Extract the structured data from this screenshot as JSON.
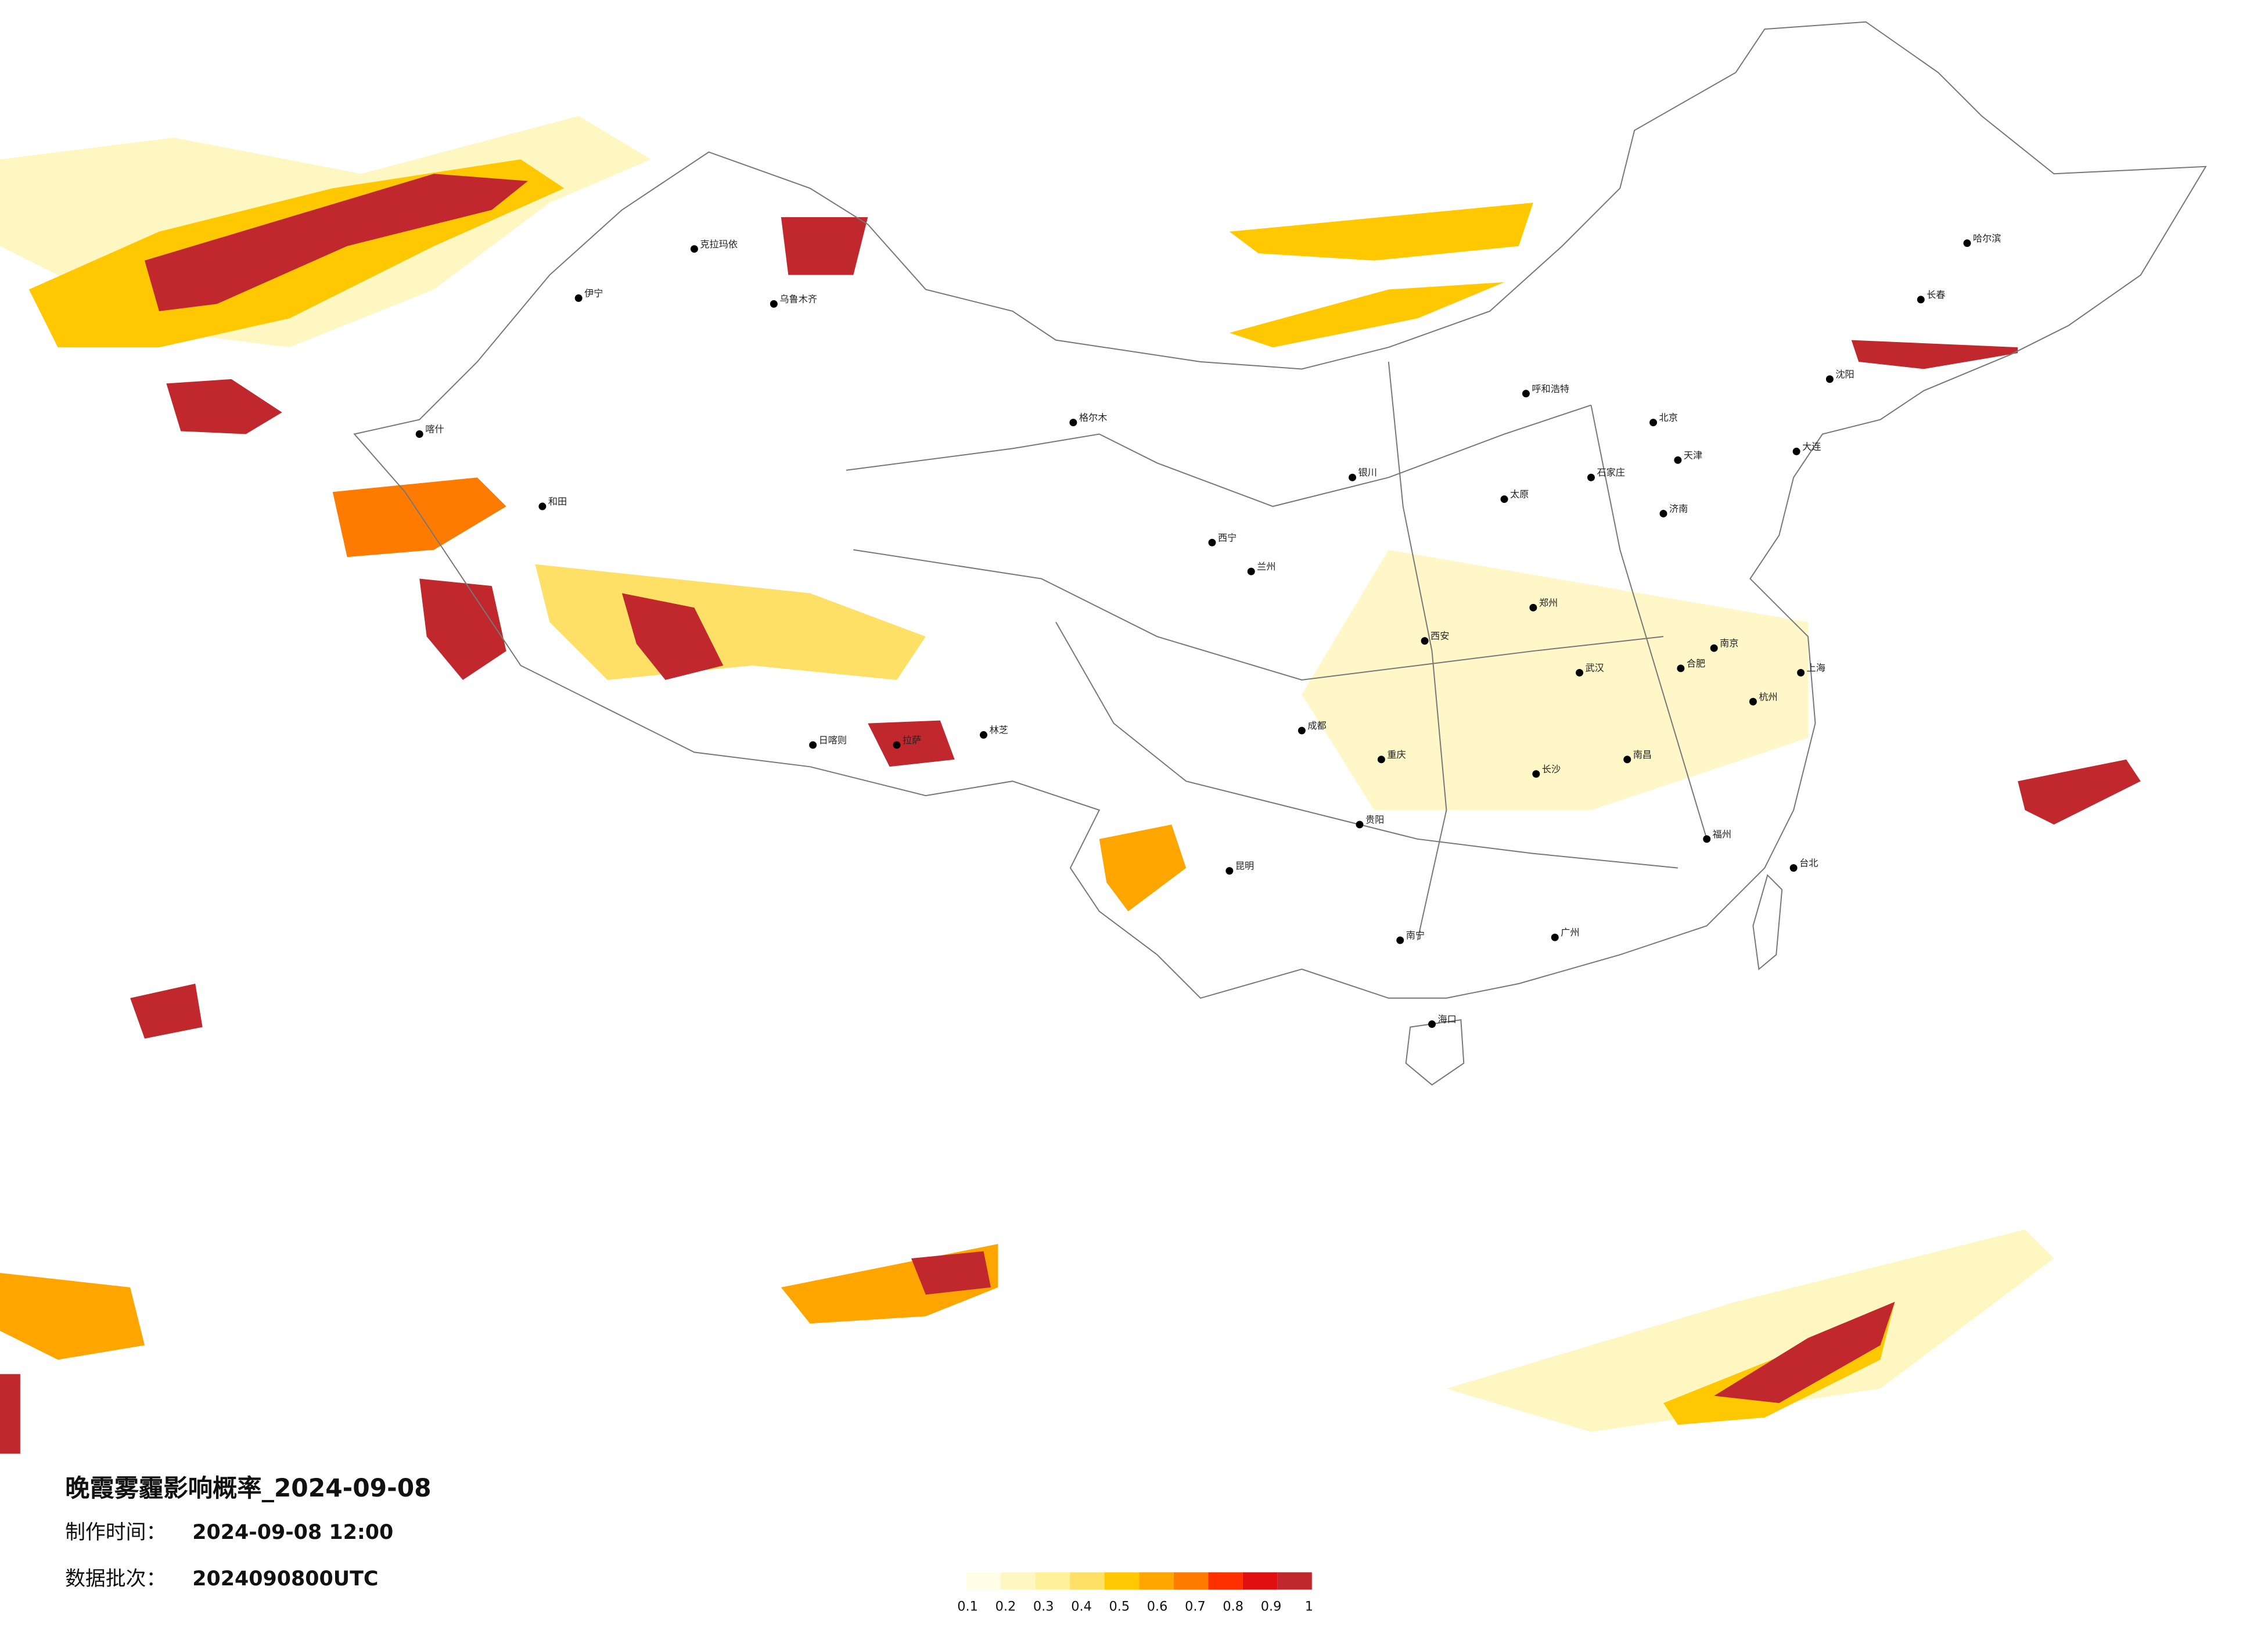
{
  "map": {
    "title": "晚霞雾霾影响概率_2024-09-08",
    "made_time_label": "制作时间：",
    "made_time": "2024-09-08 12:00",
    "batch_label": "数据批次：",
    "batch": "2024090800UTC",
    "legend": {
      "ticks": [
        0.1,
        0.2,
        0.3,
        0.4,
        0.5,
        0.6,
        0.7,
        0.8,
        0.9,
        1
      ],
      "colors": [
        "#fffde6",
        "#fff7c2",
        "#fff09a",
        "#ffe066",
        "#ffc800",
        "#ffa500",
        "#ff7b00",
        "#ff3000",
        "#e01010",
        "#c0282d"
      ]
    },
    "cities": [
      "北京",
      "天津",
      "石家庄",
      "太原",
      "呼和浩特",
      "济南",
      "郑州",
      "西安",
      "银川",
      "兰州",
      "西宁",
      "乌鲁木齐",
      "克拉玛依",
      "伊宁",
      "喀什",
      "和田",
      "格尔木",
      "拉萨",
      "日喀则",
      "林芝",
      "成都",
      "重庆",
      "贵阳",
      "昆明",
      "南宁",
      "广州",
      "长沙",
      "武汉",
      "南昌",
      "合肥",
      "南京",
      "上海",
      "杭州",
      "福州",
      "台北",
      "海口",
      "沈阳",
      "长春",
      "哈尔滨",
      "大连"
    ]
  }
}
